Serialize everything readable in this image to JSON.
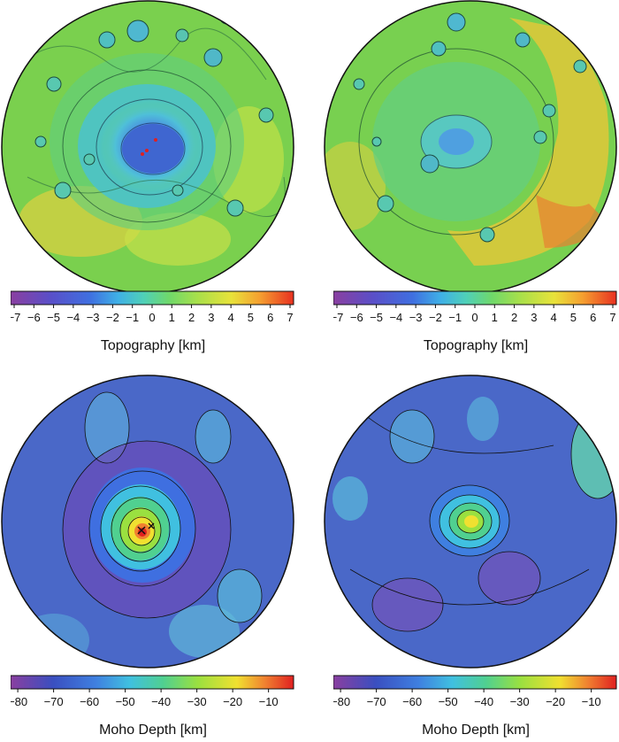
{
  "panels": [
    {
      "id": "topo-left",
      "type": "topography"
    },
    {
      "id": "topo-right",
      "type": "topography"
    },
    {
      "id": "moho-left",
      "type": "moho"
    },
    {
      "id": "moho-right",
      "type": "moho"
    }
  ],
  "topography_colorbar": {
    "label": "Topography [km]",
    "ticks": [
      "−7",
      "−6",
      "−5",
      "−4",
      "−3",
      "−2",
      "−1",
      "0",
      "1",
      "2",
      "3",
      "4",
      "5",
      "6",
      "7"
    ],
    "range": [
      -7,
      7
    ]
  },
  "moho_colorbar": {
    "label": "Moho Depth [km]",
    "ticks": [
      "−80",
      "−70",
      "−60",
      "−50",
      "−40",
      "−30",
      "−20",
      "−10"
    ],
    "tick_values": [
      -80,
      -70,
      -60,
      -50,
      -40,
      -30,
      -20,
      -10
    ],
    "range": [
      -82,
      -3
    ]
  },
  "colors": {
    "topo_stops": [
      "#8a3fa0",
      "#5a4fc8",
      "#3f6fe0",
      "#3fb0e6",
      "#4fd0b8",
      "#6fd86a",
      "#a8e04a",
      "#e8e23a",
      "#f5a030",
      "#e83020"
    ],
    "moho_stops": [
      "#8a3fa0",
      "#3a4fc0",
      "#3f7fe0",
      "#40c0e0",
      "#50d090",
      "#9ae040",
      "#f0e030",
      "#f08030",
      "#e02020"
    ],
    "marker": "#e02020"
  }
}
